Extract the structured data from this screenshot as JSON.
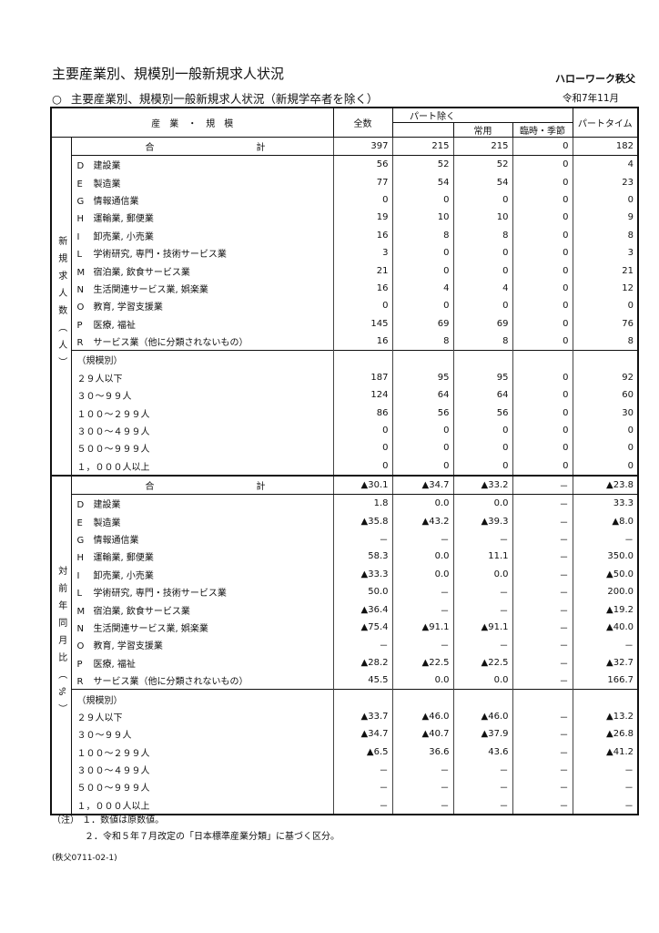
{
  "header": {
    "title": "主要産業別、規模別一般新規求人状況",
    "office": "ハローワーク秩父",
    "subtitle_marker": "○",
    "subtitle": "主要産業別、規模別一般新規求人状況（新規学卒者を除く）",
    "date": "令和7年11月"
  },
  "columns": {
    "category": "産　業　・　規　模",
    "total": "全数",
    "excluding_part": "パート除く",
    "regular": "常用",
    "temporary_seasonal": "臨時・季節",
    "part_time": "パートタイム"
  },
  "sections": [
    {
      "side_label": "新規求人数（人）",
      "total": {
        "label_a": "合",
        "label_b": "計",
        "values": [
          "397",
          "215",
          "215",
          "0",
          "182"
        ]
      },
      "industries": [
        {
          "code": "D",
          "name": "建設業",
          "values": [
            "56",
            "52",
            "52",
            "0",
            "4"
          ]
        },
        {
          "code": "E",
          "name": "製造業",
          "values": [
            "77",
            "54",
            "54",
            "0",
            "23"
          ]
        },
        {
          "code": "G",
          "name": "情報通信業",
          "values": [
            "0",
            "0",
            "0",
            "0",
            "0"
          ]
        },
        {
          "code": "H",
          "name": "運輸業, 郵便業",
          "values": [
            "19",
            "10",
            "10",
            "0",
            "9"
          ]
        },
        {
          "code": "I",
          "name": "卸売業, 小売業",
          "values": [
            "16",
            "8",
            "8",
            "0",
            "8"
          ]
        },
        {
          "code": "L",
          "name": "学術研究, 専門・技術サービス業",
          "values": [
            "3",
            "0",
            "0",
            "0",
            "3"
          ]
        },
        {
          "code": "M",
          "name": "宿泊業, 飲食サービス業",
          "values": [
            "21",
            "0",
            "0",
            "0",
            "21"
          ]
        },
        {
          "code": "N",
          "name": "生活関連サービス業, 娯楽業",
          "values": [
            "16",
            "4",
            "4",
            "0",
            "12"
          ]
        },
        {
          "code": "O",
          "name": "教育, 学習支援業",
          "values": [
            "0",
            "0",
            "0",
            "0",
            "0"
          ]
        },
        {
          "code": "P",
          "name": "医療, 福祉",
          "values": [
            "145",
            "69",
            "69",
            "0",
            "76"
          ]
        },
        {
          "code": "R",
          "name": "サービス業（他に分類されないもの）",
          "values": [
            "16",
            "8",
            "8",
            "0",
            "8"
          ]
        }
      ],
      "scale_label": "（規模別）",
      "sizes": [
        {
          "name": "２９人以下",
          "values": [
            "187",
            "95",
            "95",
            "0",
            "92"
          ]
        },
        {
          "name": "３０～９９人",
          "values": [
            "124",
            "64",
            "64",
            "0",
            "60"
          ]
        },
        {
          "name": "１００～２９９人",
          "values": [
            "86",
            "56",
            "56",
            "0",
            "30"
          ]
        },
        {
          "name": "３００～４９９人",
          "values": [
            "0",
            "0",
            "0",
            "0",
            "0"
          ]
        },
        {
          "name": "５００～９９９人",
          "values": [
            "0",
            "0",
            "0",
            "0",
            "0"
          ]
        },
        {
          "name": "１，０００人以上",
          "values": [
            "0",
            "0",
            "0",
            "0",
            "0"
          ]
        }
      ]
    },
    {
      "side_label": "対前年同月比（%）",
      "total": {
        "label_a": "合",
        "label_b": "計",
        "values": [
          "▲30.1",
          "▲34.7",
          "▲33.2",
          "－",
          "▲23.8"
        ]
      },
      "industries": [
        {
          "code": "D",
          "name": "建設業",
          "values": [
            "1.8",
            "0.0",
            "0.0",
            "－",
            "33.3"
          ]
        },
        {
          "code": "E",
          "name": "製造業",
          "values": [
            "▲35.8",
            "▲43.2",
            "▲39.3",
            "－",
            "▲8.0"
          ]
        },
        {
          "code": "G",
          "name": "情報通信業",
          "values": [
            "－",
            "－",
            "－",
            "－",
            "－"
          ]
        },
        {
          "code": "H",
          "name": "運輸業, 郵便業",
          "values": [
            "58.3",
            "0.0",
            "11.1",
            "－",
            "350.0"
          ]
        },
        {
          "code": "I",
          "name": "卸売業, 小売業",
          "values": [
            "▲33.3",
            "0.0",
            "0.0",
            "－",
            "▲50.0"
          ]
        },
        {
          "code": "L",
          "name": "学術研究, 専門・技術サービス業",
          "values": [
            "50.0",
            "－",
            "－",
            "－",
            "200.0"
          ]
        },
        {
          "code": "M",
          "name": "宿泊業, 飲食サービス業",
          "values": [
            "▲36.4",
            "－",
            "－",
            "－",
            "▲19.2"
          ]
        },
        {
          "code": "N",
          "name": "生活関連サービス業, 娯楽業",
          "values": [
            "▲75.4",
            "▲91.1",
            "▲91.1",
            "－",
            "▲40.0"
          ]
        },
        {
          "code": "O",
          "name": "教育, 学習支援業",
          "values": [
            "－",
            "－",
            "－",
            "－",
            "－"
          ]
        },
        {
          "code": "P",
          "name": "医療, 福祉",
          "values": [
            "▲28.2",
            "▲22.5",
            "▲22.5",
            "－",
            "▲32.7"
          ]
        },
        {
          "code": "R",
          "name": "サービス業（他に分類されないもの）",
          "values": [
            "45.5",
            "0.0",
            "0.0",
            "－",
            "166.7"
          ]
        }
      ],
      "scale_label": "（規模別）",
      "sizes": [
        {
          "name": "２９人以下",
          "values": [
            "▲33.7",
            "▲46.0",
            "▲46.0",
            "－",
            "▲13.2"
          ]
        },
        {
          "name": "３０～９９人",
          "values": [
            "▲34.7",
            "▲40.7",
            "▲37.9",
            "－",
            "▲26.8"
          ]
        },
        {
          "name": "１００～２９９人",
          "values": [
            "▲6.5",
            "36.6",
            "43.6",
            "－",
            "▲41.2"
          ]
        },
        {
          "name": "３００～４９９人",
          "values": [
            "－",
            "－",
            "－",
            "－",
            "－"
          ]
        },
        {
          "name": "５００～９９９人",
          "values": [
            "－",
            "－",
            "－",
            "－",
            "－"
          ]
        },
        {
          "name": "１，０００人以上",
          "values": [
            "－",
            "－",
            "－",
            "－",
            "－"
          ]
        }
      ]
    }
  ],
  "notes": {
    "prefix": "（注）",
    "note1": "１．数値は原数値。",
    "note2": "２．令和５年７月改定の「日本標準産業分類」に基づく区分。"
  },
  "doc_id": "(秩父0711-02-1)"
}
